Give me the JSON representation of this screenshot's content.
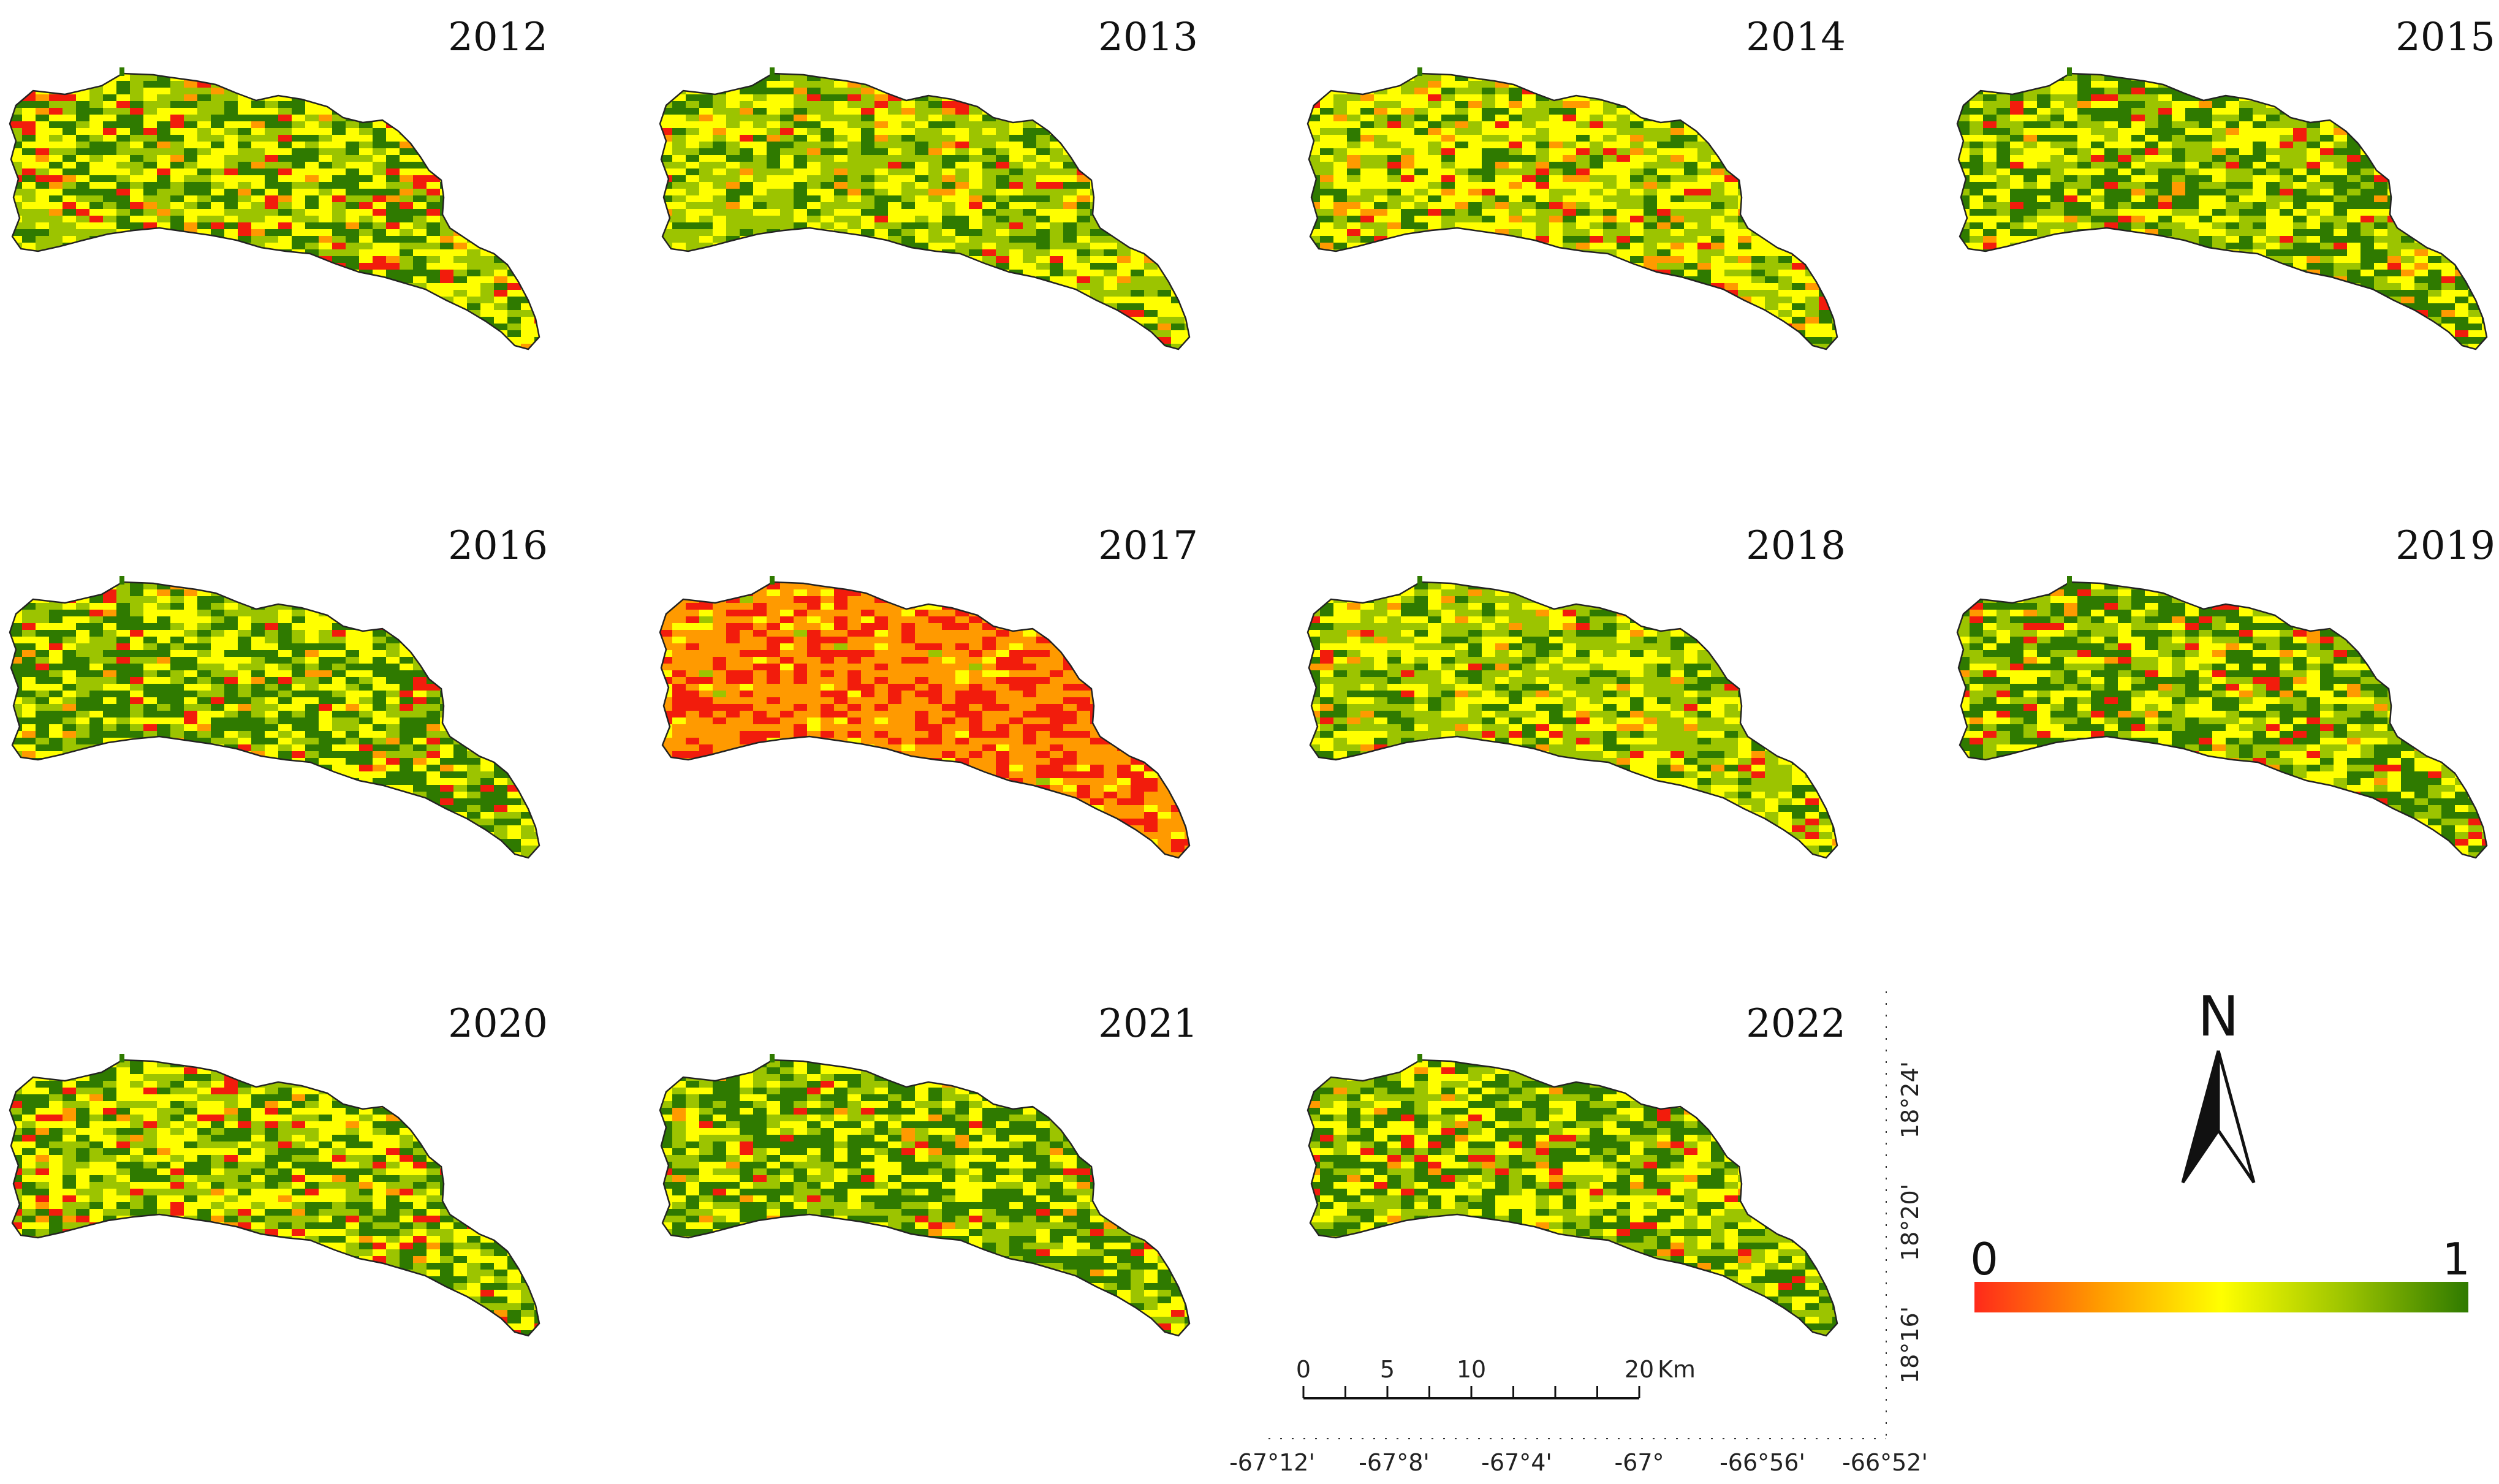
{
  "panels": [
    {
      "year": "2012",
      "style": "mixed"
    },
    {
      "year": "2013",
      "style": "lightgreen"
    },
    {
      "year": "2014",
      "style": "yellow"
    },
    {
      "year": "2015",
      "style": "green"
    },
    {
      "year": "2016",
      "style": "green"
    },
    {
      "year": "2017",
      "style": "drought"
    },
    {
      "year": "2018",
      "style": "lightgreen"
    },
    {
      "year": "2019",
      "style": "green"
    },
    {
      "year": "2020",
      "style": "mixed"
    },
    {
      "year": "2021",
      "style": "green"
    },
    {
      "year": "2022",
      "style": "green"
    }
  ],
  "legend": {
    "min_label": "0",
    "max_label": "1",
    "colors": [
      "#ff2a1a",
      "#ff9a00",
      "#ffff00",
      "#9cc400",
      "#2f7a00"
    ]
  },
  "north_arrow": {
    "label": "N"
  },
  "scale_bar": {
    "labels": [
      "0",
      "5",
      "10",
      "20"
    ],
    "unit": "Km"
  },
  "graticule": {
    "longitudes": [
      "-67°12'",
      "-67°8'",
      "-67°4'",
      "-67°",
      "-66°56'",
      "-66°52'"
    ],
    "latitudes": [
      "18°24'",
      "18°20'",
      "18°16'"
    ]
  },
  "palette": {
    "red": "#f21c0c",
    "orange": "#ff9a00",
    "yellow": "#ffff00",
    "lightgreen": "#9cc400",
    "green": "#2f7a00"
  }
}
